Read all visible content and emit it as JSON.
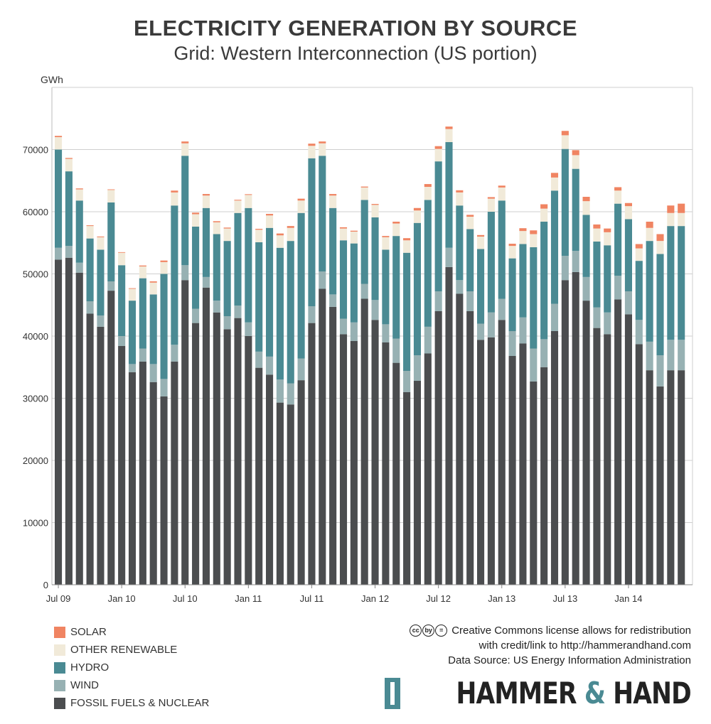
{
  "header": {
    "title": "ELECTRICITY GENERATION BY SOURCE",
    "subtitle": "Grid: Western Interconnection (US portion)"
  },
  "legend": [
    {
      "label": "SOLAR",
      "color": "#f08462"
    },
    {
      "label": "OTHER RENEWABLE",
      "color": "#f1ead9"
    },
    {
      "label": "HYDRO",
      "color": "#4a8a93"
    },
    {
      "label": "WIND",
      "color": "#97b1b3"
    },
    {
      "label": "FOSSIL FUELS & NUCLEAR",
      "color": "#4b4d4f"
    }
  ],
  "credits": {
    "cc_icons": [
      "cc",
      "by",
      "="
    ],
    "line1": "Creative Commons license allows for redistribution",
    "line2": "with credit/link to http://hammerandhand.com",
    "line3": "Data Source: US Energy Information Administration"
  },
  "logo": {
    "part1": "HAMMER ",
    "amp": "&",
    "part2": " HAND"
  },
  "chart_data": {
    "type": "bar",
    "stacked": true,
    "ylabel": "GWh",
    "ylim": [
      0,
      80000
    ],
    "yticks": [
      0,
      10000,
      20000,
      30000,
      40000,
      50000,
      60000,
      70000
    ],
    "grid": "horizontal",
    "legend_position": "bottom-left",
    "xtick_labels": [
      {
        "index": 0,
        "label": "Jul 09"
      },
      {
        "index": 6,
        "label": "Jan 10"
      },
      {
        "index": 12,
        "label": "Jul 10"
      },
      {
        "index": 18,
        "label": "Jan 11"
      },
      {
        "index": 24,
        "label": "Jul 11"
      },
      {
        "index": 30,
        "label": "Jan 12"
      },
      {
        "index": 36,
        "label": "Jul 12"
      },
      {
        "index": 42,
        "label": "Jan 13"
      },
      {
        "index": 48,
        "label": "Jul 13"
      },
      {
        "index": 54,
        "label": "Jan 14"
      }
    ],
    "categories": [
      "Jul 09",
      "Aug 09",
      "Sep 09",
      "Oct 09",
      "Nov 09",
      "Dec 09",
      "Jan 10",
      "Feb 10",
      "Mar 10",
      "Apr 10",
      "May 10",
      "Jun 10",
      "Jul 10",
      "Aug 10",
      "Sep 10",
      "Oct 10",
      "Nov 10",
      "Dec 10",
      "Jan 11",
      "Feb 11",
      "Mar 11",
      "Apr 11",
      "May 11",
      "Jun 11",
      "Jul 11",
      "Aug 11",
      "Sep 11",
      "Oct 11",
      "Nov 11",
      "Dec 11",
      "Jan 12",
      "Feb 12",
      "Mar 12",
      "Apr 12",
      "May 12",
      "Jun 12",
      "Jul 12",
      "Aug 12",
      "Sep 12",
      "Oct 12",
      "Nov 12",
      "Dec 12",
      "Jan 13",
      "Feb 13",
      "Mar 13",
      "Apr 13",
      "May 13",
      "Jun 13",
      "Jul 13",
      "Aug 13",
      "Sep 13",
      "Oct 13",
      "Nov 13",
      "Dec 13",
      "Jan 14",
      "Feb 14",
      "Mar 14",
      "Apr 14",
      "May 14",
      "Jun 14"
    ],
    "series": [
      {
        "name": "FOSSIL FUELS & NUCLEAR",
        "color": "#4b4d4f",
        "values": [
          52300,
          52600,
          50200,
          43600,
          41500,
          47300,
          38400,
          34200,
          35900,
          32600,
          30300,
          35900,
          49000,
          42100,
          47800,
          43800,
          41100,
          42900,
          40000,
          34900,
          33800,
          29300,
          29000,
          32900,
          42100,
          47600,
          44700,
          40300,
          39200,
          46000,
          42600,
          39000,
          35700,
          31000,
          32800,
          37200,
          44000,
          51100,
          46800,
          44000,
          39400,
          39800,
          42600,
          36800,
          38800,
          32700,
          35000,
          40800,
          49000,
          50300,
          45700,
          41300,
          40300,
          45900,
          43500,
          38700,
          34500,
          31900,
          34500,
          34500
        ]
      },
      {
        "name": "WIND",
        "color": "#97b1b3",
        "values": [
          1900,
          1900,
          1600,
          2000,
          1800,
          1500,
          1600,
          1300,
          2100,
          2900,
          2800,
          2700,
          2400,
          2300,
          1700,
          1900,
          2100,
          2000,
          2200,
          2600,
          2900,
          3700,
          3400,
          3500,
          2700,
          2800,
          2000,
          2500,
          3000,
          2400,
          3200,
          2900,
          3900,
          3400,
          4100,
          4300,
          3200,
          3100,
          2200,
          3200,
          2600,
          4000,
          3400,
          4000,
          4200,
          5300,
          4500,
          4400,
          3900,
          3400,
          3800,
          3300,
          3500,
          3800,
          3700,
          3900,
          4600,
          5000,
          4900,
          4900
        ]
      },
      {
        "name": "HYDRO",
        "color": "#4a8a93",
        "values": [
          15800,
          12000,
          10000,
          10100,
          10600,
          12700,
          11400,
          10200,
          11300,
          11200,
          16900,
          22400,
          17600,
          13200,
          11100,
          10700,
          12100,
          14900,
          18400,
          17600,
          20700,
          21200,
          22900,
          23400,
          23800,
          18600,
          13900,
          12600,
          12700,
          13500,
          13300,
          12000,
          16500,
          19000,
          21300,
          20400,
          20900,
          17000,
          12000,
          10000,
          12000,
          16200,
          15800,
          11700,
          11800,
          16300,
          18900,
          18200,
          17200,
          13200,
          10000,
          10600,
          10800,
          11600,
          11600,
          9500,
          16200,
          16300,
          18300,
          18300
        ]
      },
      {
        "name": "OTHER RENEWABLE",
        "color": "#f1ead9",
        "values": [
          2000,
          2000,
          1800,
          2000,
          2000,
          2000,
          2000,
          1900,
          1900,
          1900,
          1900,
          2100,
          2000,
          2000,
          2000,
          1900,
          2000,
          2000,
          2100,
          2000,
          2000,
          2000,
          2100,
          2000,
          2000,
          2000,
          2000,
          1900,
          1900,
          2000,
          2000,
          2000,
          2000,
          2000,
          2000,
          2100,
          2000,
          2100,
          2100,
          2000,
          2000,
          2100,
          2100,
          2000,
          2100,
          2100,
          2100,
          2100,
          2200,
          2200,
          2200,
          2100,
          2100,
          2100,
          2100,
          2000,
          2100,
          2100,
          2100,
          2100
        ]
      },
      {
        "name": "SOLAR",
        "color": "#f08462",
        "values": [
          200,
          150,
          150,
          120,
          120,
          100,
          100,
          100,
          150,
          200,
          250,
          300,
          300,
          250,
          250,
          180,
          150,
          120,
          120,
          150,
          250,
          300,
          300,
          300,
          350,
          300,
          250,
          200,
          150,
          150,
          150,
          200,
          300,
          350,
          400,
          450,
          450,
          400,
          350,
          300,
          250,
          250,
          300,
          350,
          450,
          600,
          700,
          750,
          700,
          800,
          700,
          650,
          600,
          550,
          500,
          700,
          1000,
          1100,
          1200,
          1500
        ]
      }
    ]
  }
}
